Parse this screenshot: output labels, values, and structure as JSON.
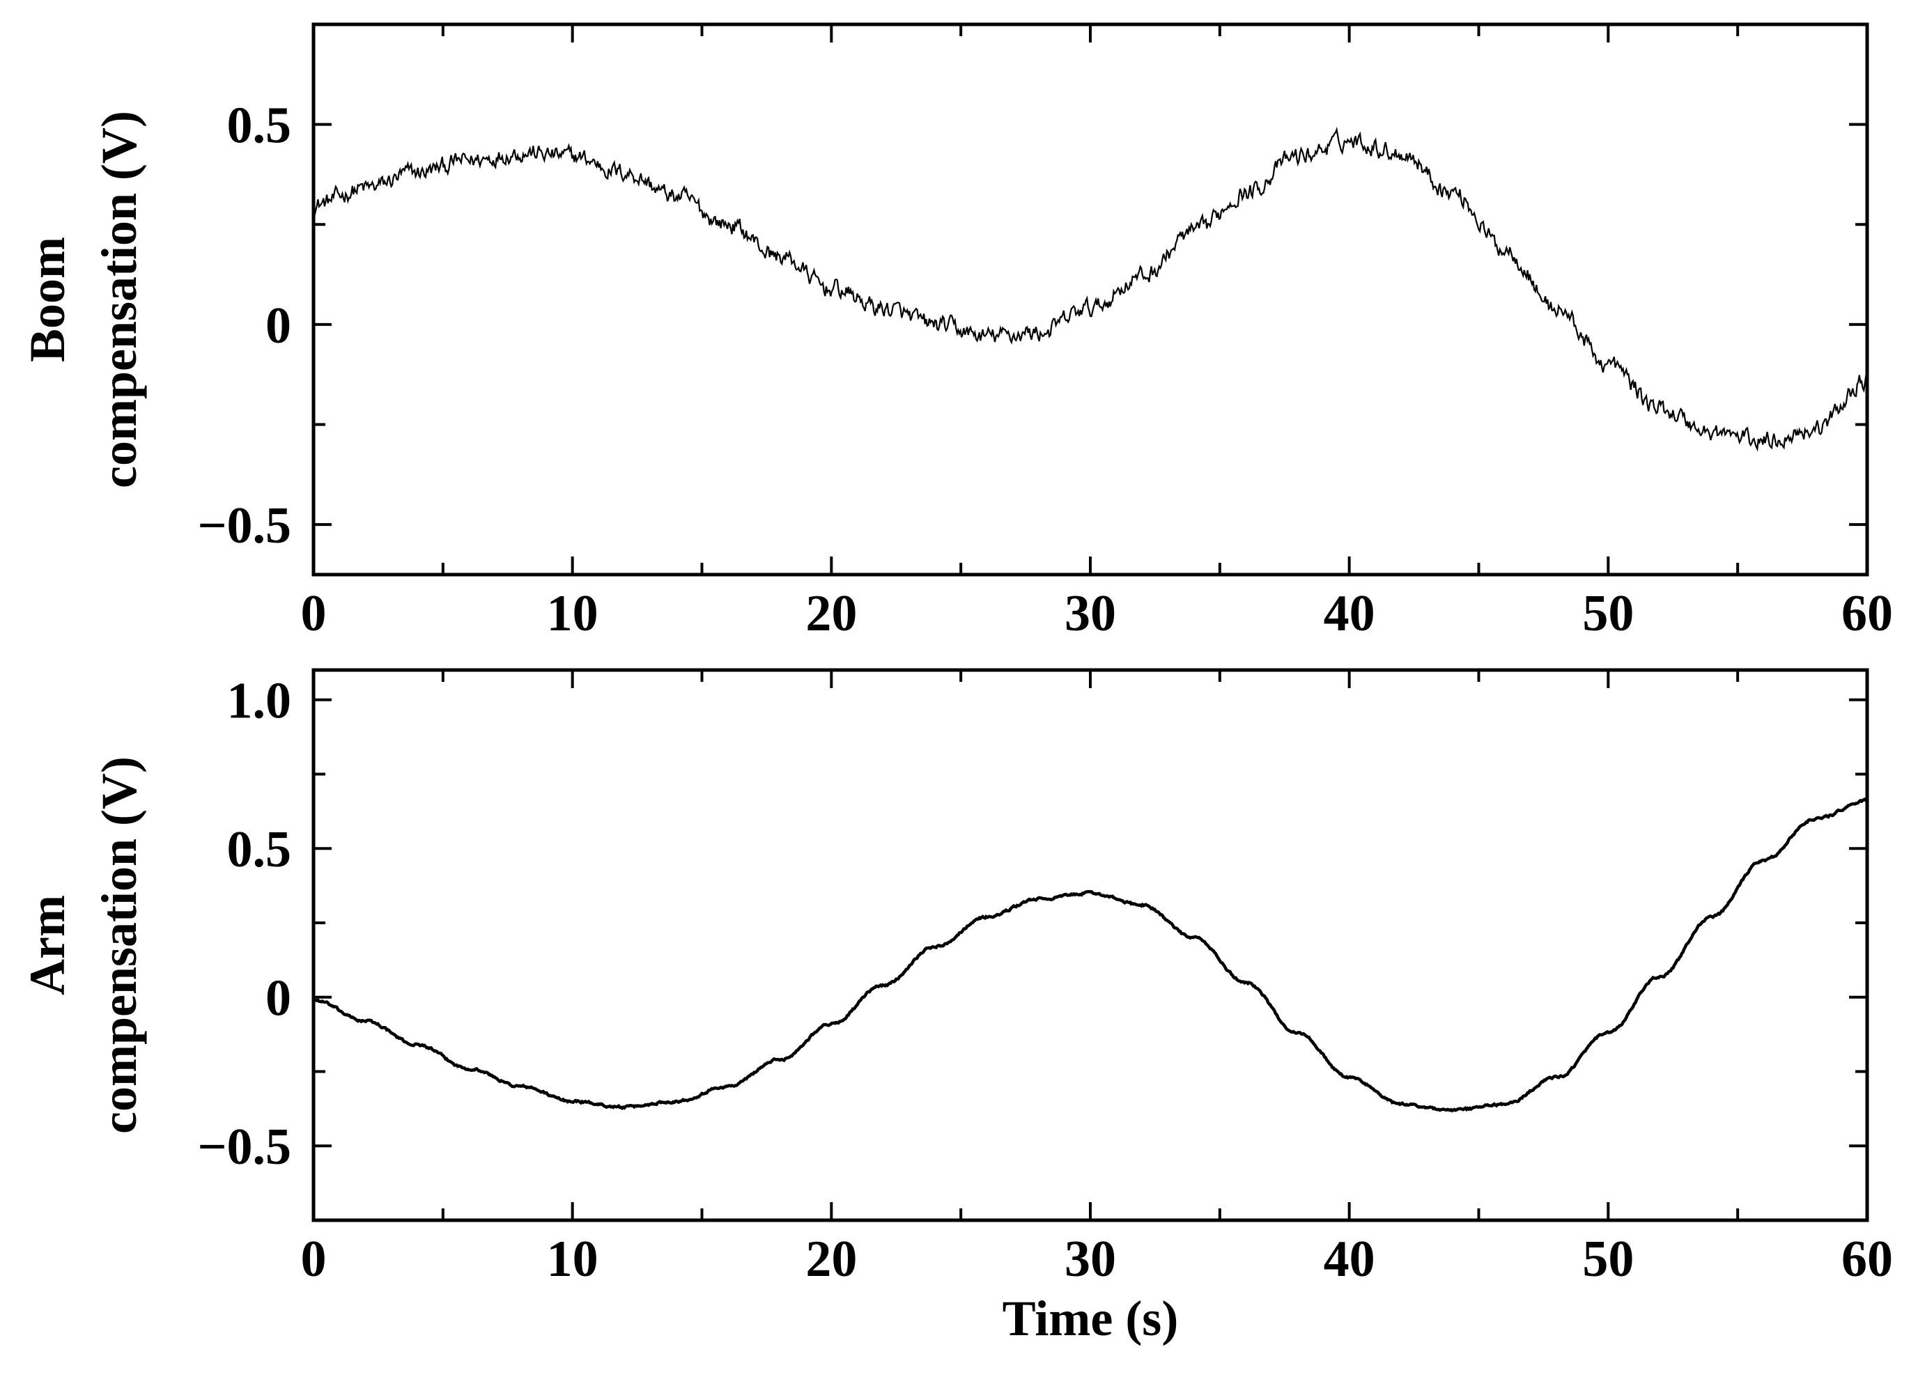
{
  "chart_data": [
    {
      "type": "line",
      "ylabel_line1": "Boom",
      "ylabel_line2": "compensation (V)",
      "xlabel": "",
      "xlim": [
        0,
        60
      ],
      "ylim": [
        -0.625,
        0.75
      ],
      "xticks": [
        0,
        10,
        20,
        30,
        40,
        50,
        60
      ],
      "xtick_labels": [
        "0",
        "10",
        "20",
        "30",
        "40",
        "50",
        "60"
      ],
      "yticks": [
        -0.5,
        0,
        0.5
      ],
      "ytick_labels": [
        "−0.5",
        "0",
        "0.5"
      ],
      "yminor_ticks": [
        -0.25,
        0.25
      ],
      "grid": false,
      "noise": 0.022,
      "series": [
        {
          "color": "#000000",
          "x": [
            0,
            2,
            4,
            6,
            8,
            10,
            12,
            14,
            16,
            18,
            20,
            22,
            24,
            26,
            28,
            30,
            32,
            34,
            36,
            38,
            40,
            42,
            44,
            46,
            48,
            50,
            52,
            54,
            56,
            58,
            60
          ],
          "y": [
            0.3,
            0.34,
            0.38,
            0.41,
            0.43,
            0.42,
            0.38,
            0.32,
            0.25,
            0.17,
            0.09,
            0.04,
            0.0,
            -0.03,
            -0.02,
            0.04,
            0.12,
            0.23,
            0.33,
            0.42,
            0.46,
            0.43,
            0.33,
            0.19,
            0.04,
            -0.1,
            -0.21,
            -0.27,
            -0.29,
            -0.26,
            -0.14
          ]
        }
      ]
    },
    {
      "type": "line",
      "ylabel_line1": "Arm",
      "ylabel_line2": "compensation (V)",
      "xlabel": "Time (s)",
      "xlim": [
        0,
        60
      ],
      "ylim": [
        -0.75,
        1.1
      ],
      "xticks": [
        0,
        10,
        20,
        30,
        40,
        50,
        60
      ],
      "xtick_labels": [
        "0",
        "10",
        "20",
        "30",
        "40",
        "50",
        "60"
      ],
      "yticks": [
        -0.5,
        0,
        0.5,
        1.0
      ],
      "ytick_labels": [
        "−0.5",
        "0",
        "0.5",
        "1.0"
      ],
      "yminor_ticks": [
        -0.25,
        0.25,
        0.75
      ],
      "grid": false,
      "noise": 0.004,
      "series": [
        {
          "color": "#000000",
          "x": [
            0,
            2,
            4,
            6,
            8,
            10,
            12,
            14,
            16,
            18,
            20,
            22,
            24,
            26,
            28,
            30,
            32,
            34,
            36,
            38,
            40,
            42,
            44,
            46,
            48,
            50,
            52,
            54,
            56,
            58,
            60
          ],
          "y": [
            -0.01,
            -0.08,
            -0.16,
            -0.24,
            -0.3,
            -0.35,
            -0.37,
            -0.35,
            -0.3,
            -0.21,
            -0.09,
            0.04,
            0.17,
            0.27,
            0.33,
            0.35,
            0.31,
            0.2,
            0.05,
            -0.12,
            -0.27,
            -0.36,
            -0.38,
            -0.36,
            -0.27,
            -0.12,
            0.07,
            0.27,
            0.46,
            0.6,
            0.66
          ]
        }
      ]
    }
  ]
}
